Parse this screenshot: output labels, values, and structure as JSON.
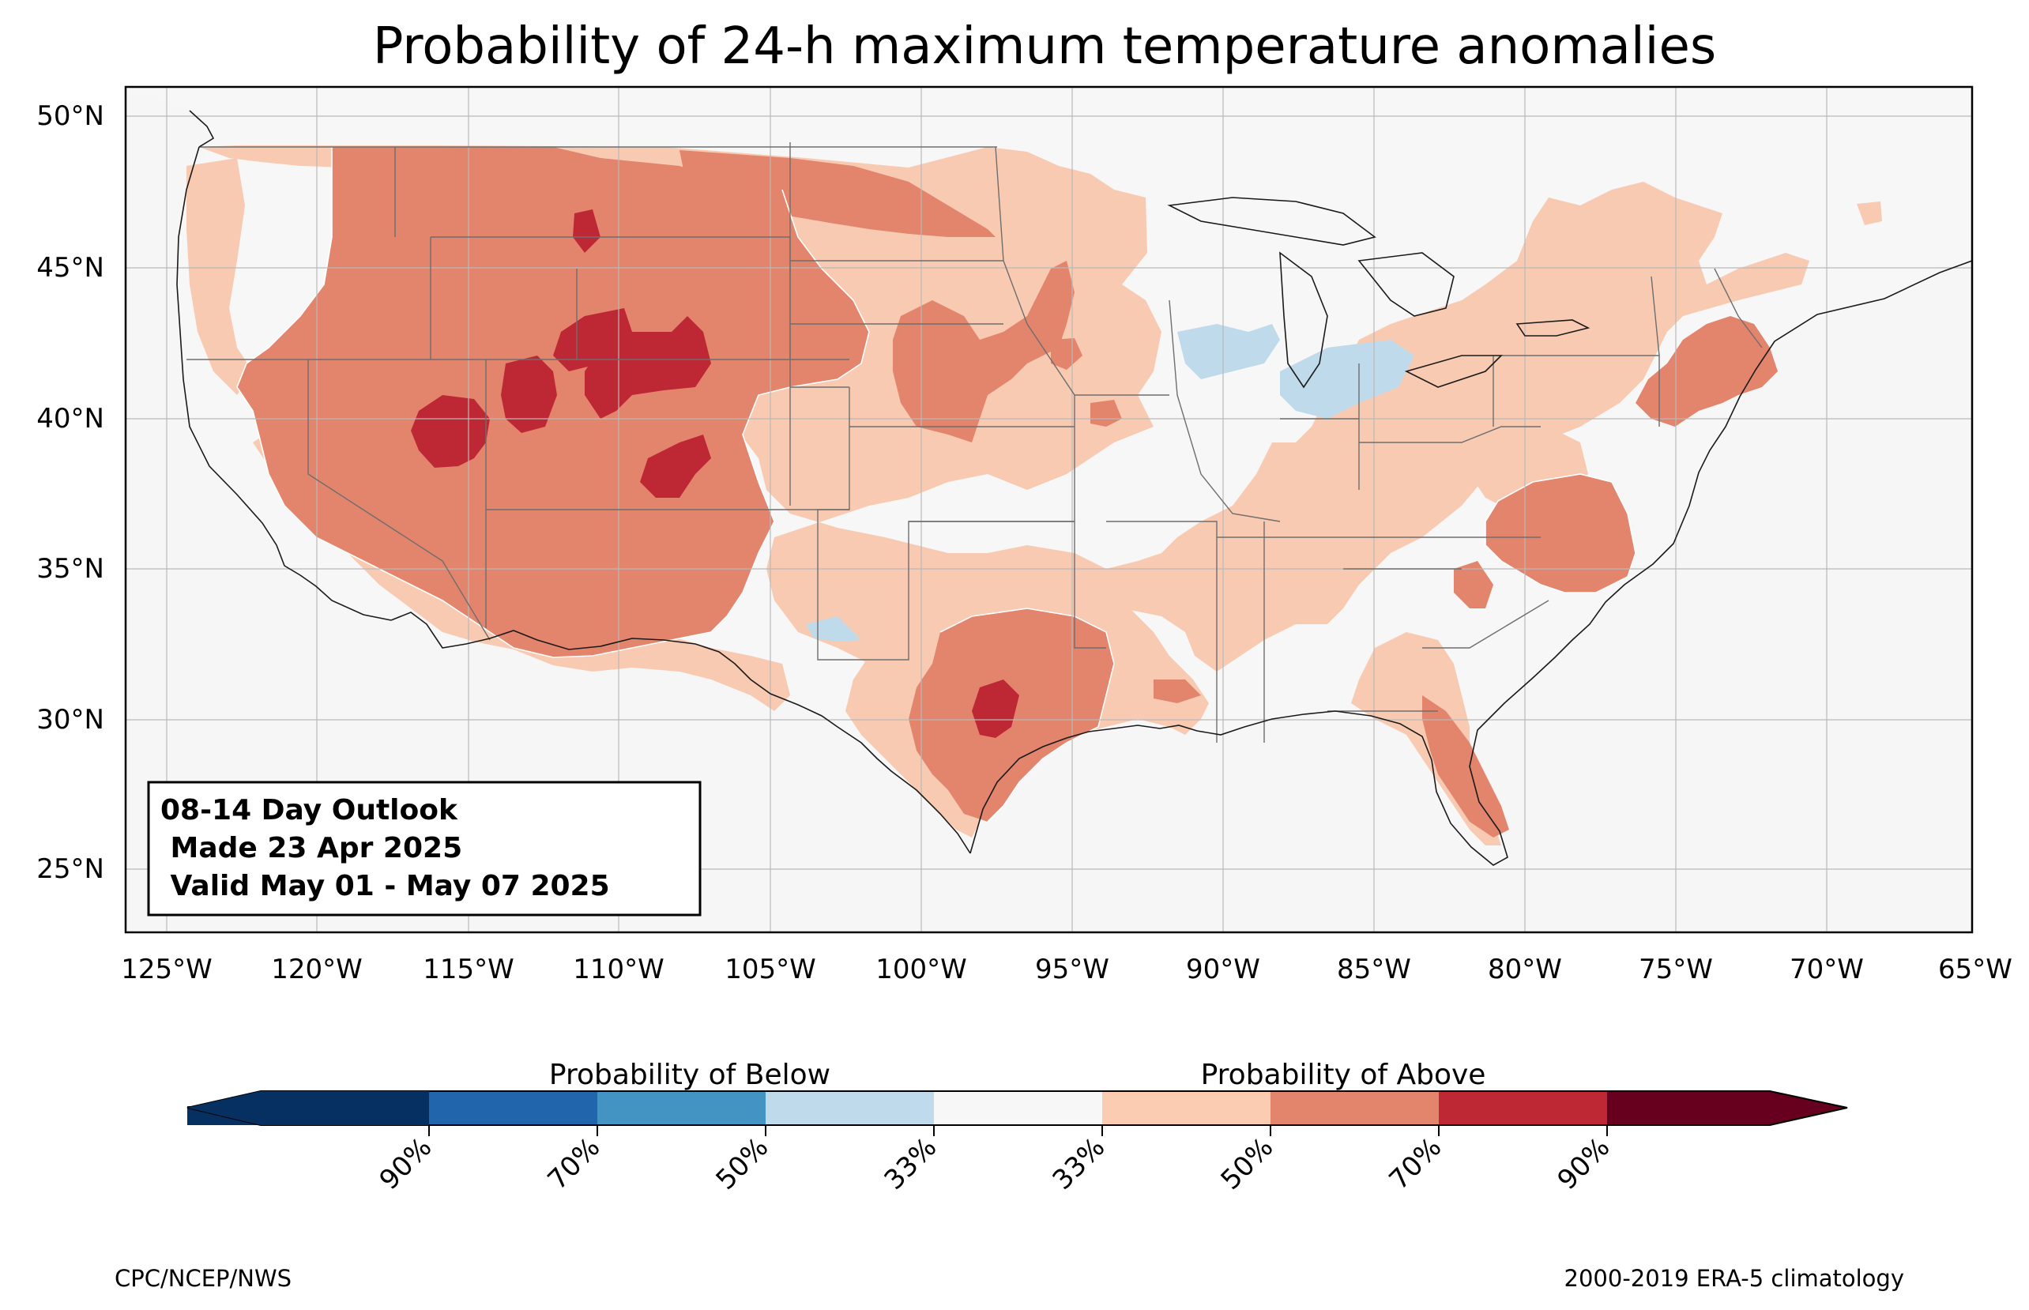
{
  "title": "Probability of 24-h maximum temperature anomalies",
  "info_box": {
    "line1": "08-14 Day Outlook",
    "line2": " Made 23 Apr 2025",
    "line3": " Valid May 01 - May 07 2025"
  },
  "lat_ticks": [
    "50°N",
    "45°N",
    "40°N",
    "35°N",
    "30°N",
    "25°N"
  ],
  "lon_ticks": [
    "125°W",
    "120°W",
    "115°W",
    "110°W",
    "105°W",
    "100°W",
    "95°W",
    "90°W",
    "85°W",
    "80°W",
    "75°W",
    "70°W",
    "65°W"
  ],
  "colorbar": {
    "below_label": "Probability of Below",
    "above_label": "Probability of Above",
    "tick_labels": [
      "90%",
      "70%",
      "50%",
      "33%",
      "33%",
      "50%",
      "70%",
      "90%"
    ],
    "colors": [
      "#053061",
      "#2166ac",
      "#4393c3",
      "#92c5de",
      "#d1e5f0",
      "#f7f7f7",
      "#fddbc7",
      "#f4a582",
      "#d6604d",
      "#b2182b",
      "#67001f"
    ]
  },
  "colors": {
    "ocean_background": "#f5f6f5",
    "near_normal": "#f7f7f7",
    "above_33_50": "#f8cab2",
    "above_50_70": "#e3846d",
    "above_70_90": "#be2835",
    "below_33_50": "#bfdaea"
  },
  "credit_left": "CPC/NCEP/NWS",
  "credit_right": "2000-2019 ERA-5 climatology"
}
